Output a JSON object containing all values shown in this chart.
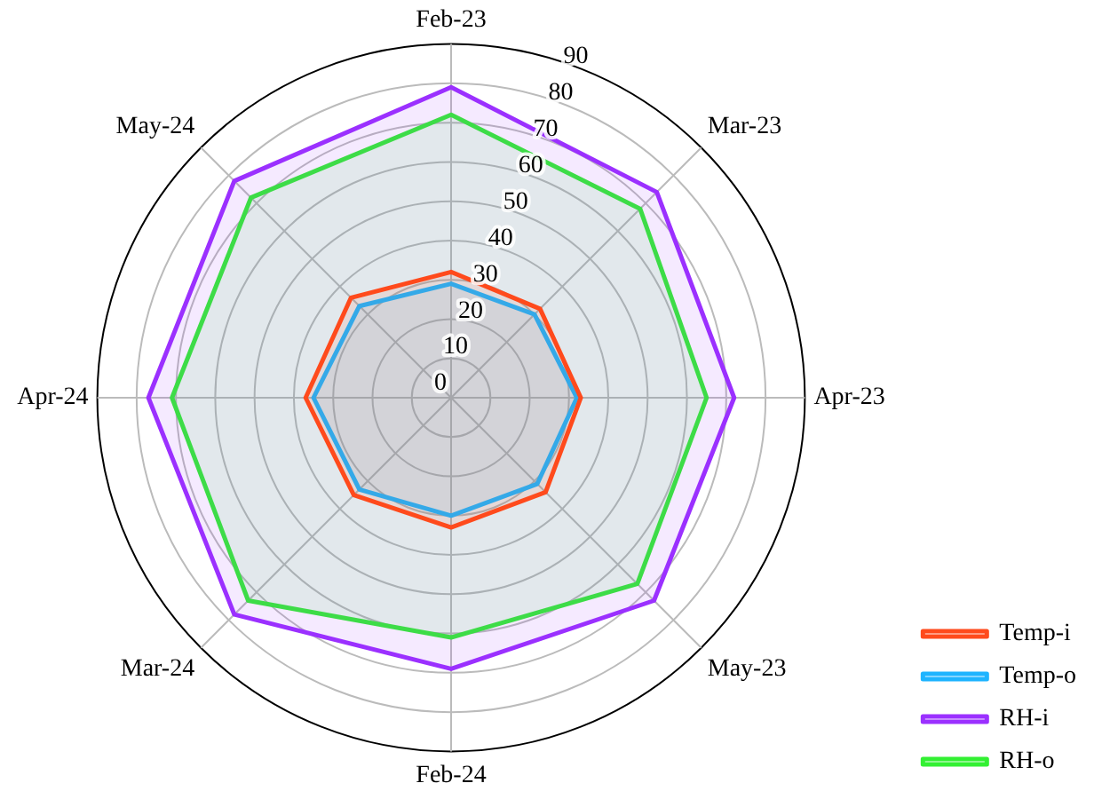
{
  "chart_data": {
    "type": "radar",
    "categories": [
      "Feb-23",
      "Mar-23",
      "Apr-23",
      "May-23",
      "Feb-24",
      "Mar-24",
      "Apr-24",
      "May-24"
    ],
    "series": [
      {
        "name": "Temp-i",
        "color": "#ff4a1c",
        "values": [
          32,
          32,
          33,
          34,
          33,
          35,
          37,
          36
        ]
      },
      {
        "name": "Temp-o",
        "color": "#1eb4ff",
        "values": [
          29,
          30,
          32,
          31,
          30,
          33,
          35,
          33
        ]
      },
      {
        "name": "RH-i",
        "color": "#9b30ff",
        "values": [
          79,
          74,
          72,
          73,
          69,
          78,
          77,
          78
        ]
      },
      {
        "name": "RH-o",
        "color": "#33f033",
        "values": [
          72,
          68,
          65,
          67,
          61,
          73,
          71,
          72
        ]
      }
    ],
    "ylim": [
      0,
      90
    ],
    "yticks": [
      0,
      10,
      20,
      30,
      40,
      50,
      60,
      70,
      80,
      90
    ],
    "grid": true,
    "legend": "bottom right"
  }
}
